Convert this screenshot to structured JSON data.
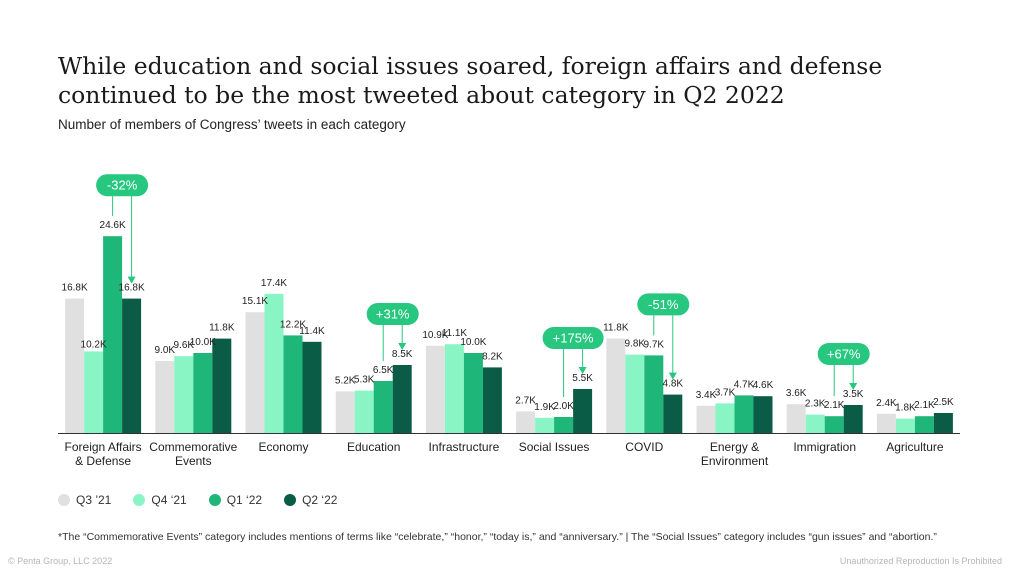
{
  "title": "While education and social issues soared, foreign affairs and defense continued to be the most tweeted about category in Q2 2022",
  "subtitle": "Number of members of Congress’ tweets in each category",
  "legend": [
    {
      "label": "Q3 ’21",
      "color": "#e0e0e0"
    },
    {
      "label": "Q4 ‘21",
      "color": "#8af5c4"
    },
    {
      "label": "Q1 ‘22",
      "color": "#1fb67a"
    },
    {
      "label": "Q2 ‘22",
      "color": "#0a5c46"
    }
  ],
  "footnote": "*The “Commemorative Events” category includes mentions of terms like “celebrate,” “honor,” “today is,” and “anniversary.” | The “Social Issues” category includes “gun issues” and “abortion.”",
  "copyright": "© Penta Group, LLC 2022",
  "unauthorized": "Unauthorized Reproduction Is Prohibited",
  "chart_data": {
    "type": "bar",
    "categories": [
      [
        "Foreign Affairs",
        "& Defense"
      ],
      [
        "Commemorative",
        "Events"
      ],
      [
        "Economy"
      ],
      [
        "Education"
      ],
      [
        "Infrastructure"
      ],
      [
        "Social Issues"
      ],
      [
        "COVID"
      ],
      [
        "Energy &",
        "Environment"
      ],
      [
        "Immigration"
      ],
      [
        "Agriculture"
      ]
    ],
    "series": [
      {
        "name": "Q3 ’21",
        "color": "#e0e0e0",
        "values": [
          16.8,
          9.0,
          15.1,
          5.2,
          10.9,
          2.7,
          11.8,
          3.4,
          3.6,
          2.4
        ],
        "labels": [
          "16.8K",
          "9.0K",
          "15.1K",
          "5.2K",
          "10.9K",
          "2.7K",
          "11.8K",
          "3.4K",
          "3.6K",
          "2.4K"
        ]
      },
      {
        "name": "Q4 ‘21",
        "color": "#8af5c4",
        "values": [
          10.2,
          9.6,
          17.4,
          5.3,
          11.1,
          1.9,
          9.8,
          3.7,
          2.3,
          1.8
        ],
        "labels": [
          "10.2K",
          "9.6K",
          "17.4K",
          "5.3K",
          "11.1K",
          "1.9K",
          "9.8K",
          "3.7K",
          "2.3K",
          "1.8K"
        ]
      },
      {
        "name": "Q1 ‘22",
        "color": "#1fb67a",
        "values": [
          24.6,
          10.0,
          12.2,
          6.5,
          10.0,
          2.0,
          9.7,
          4.7,
          2.1,
          2.1
        ],
        "labels": [
          "24.6K",
          "10.0K",
          "12.2K",
          "6.5K",
          "10.0K",
          "2.0K",
          "9.7K",
          "4.7K",
          "2.1K",
          "2.1K"
        ]
      },
      {
        "name": "Q2 ‘22",
        "color": "#0a5c46",
        "values": [
          16.8,
          11.8,
          11.4,
          8.5,
          8.2,
          5.5,
          4.8,
          4.6,
          3.5,
          2.5
        ],
        "labels": [
          "16.8K",
          "11.8K",
          "11.4K",
          "8.5K",
          "8.2K",
          "5.5K",
          "4.8K",
          "4.6K",
          "3.5K",
          "2.5K"
        ]
      }
    ],
    "annotations": [
      {
        "category": 0,
        "text": "-32%"
      },
      {
        "category": 3,
        "text": "+31%"
      },
      {
        "category": 5,
        "text": "+175%"
      },
      {
        "category": 6,
        "text": "-51%"
      },
      {
        "category": 8,
        "text": "+67%"
      }
    ],
    "ylim": [
      0,
      26
    ],
    "grid": false,
    "legend_position": "bottom-left",
    "xlabel": "",
    "ylabel": ""
  }
}
